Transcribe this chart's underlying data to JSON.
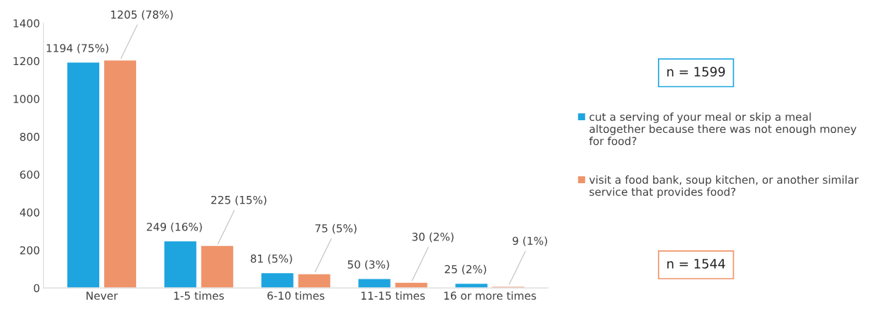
{
  "chart_data": {
    "type": "bar",
    "categories": [
      "Never",
      "1-5 times",
      "6-10 times",
      "11-15 times",
      "16 or more times"
    ],
    "series": [
      {
        "name": "cut a serving of your meal or skip a meal altogether because there was not enough money for food?",
        "color": "#1ea5df",
        "values": [
          1194,
          249,
          81,
          50,
          25
        ],
        "value_labels": [
          "1194 (75%)",
          "249 (16%)",
          "81 (5%)",
          "50 (3%)",
          "25 (2%)"
        ]
      },
      {
        "name": "visit a food bank, soup kitchen, or another similar service that provides food?",
        "color": "#ef946a",
        "values": [
          1205,
          225,
          75,
          30,
          9
        ],
        "value_labels": [
          "1205 (78%)",
          "225 (15%)",
          "75 (5%)",
          "30 (2%)",
          "9 (1%)"
        ]
      }
    ],
    "ylim": [
      0,
      1400
    ],
    "yticks": [
      0,
      200,
      400,
      600,
      800,
      1000,
      1200,
      1400
    ],
    "legend": "right",
    "annotations": [
      "n = 1599",
      "n = 1544"
    ]
  }
}
